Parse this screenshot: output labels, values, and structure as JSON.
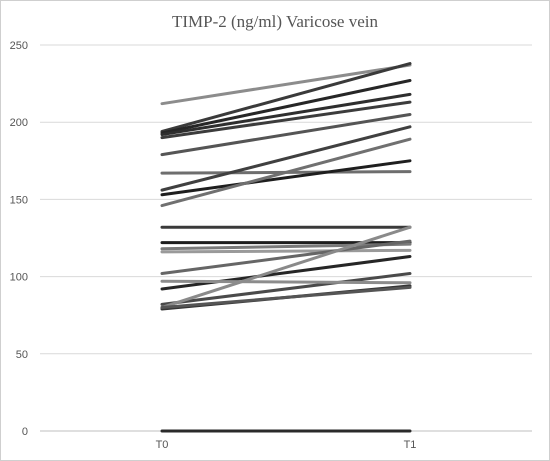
{
  "chart_data": {
    "type": "line",
    "title": "TIMP-2 (ng/ml) Varicose vein",
    "categories": [
      "T0",
      "T1"
    ],
    "ylim": [
      0,
      250
    ],
    "yticks": [
      0,
      50,
      100,
      150,
      200,
      250
    ],
    "grid": true,
    "legend": "none",
    "series": [
      {
        "values": [
          212,
          237
        ],
        "color": "#8c8c8c"
      },
      {
        "values": [
          194,
          238
        ],
        "color": "#3a3a3a"
      },
      {
        "values": [
          193,
          227
        ],
        "color": "#262626"
      },
      {
        "values": [
          192,
          218
        ],
        "color": "#2e2e2e"
      },
      {
        "values": [
          190,
          213
        ],
        "color": "#3c3c3c"
      },
      {
        "values": [
          179,
          205
        ],
        "color": "#555555"
      },
      {
        "values": [
          167,
          168
        ],
        "color": "#6e6e6e"
      },
      {
        "values": [
          156,
          197
        ],
        "color": "#404040"
      },
      {
        "values": [
          153,
          175
        ],
        "color": "#1e1e1e"
      },
      {
        "values": [
          146,
          189
        ],
        "color": "#707070"
      },
      {
        "values": [
          132,
          132
        ],
        "color": "#3a3a3a"
      },
      {
        "values": [
          122,
          122
        ],
        "color": "#1e1e1e"
      },
      {
        "values": [
          118,
          121
        ],
        "color": "#7a7a7a"
      },
      {
        "values": [
          116,
          117
        ],
        "color": "#9a9a9a"
      },
      {
        "values": [
          102,
          123
        ],
        "color": "#666666"
      },
      {
        "values": [
          92,
          113
        ],
        "color": "#262626"
      },
      {
        "values": [
          82,
          102
        ],
        "color": "#4a4a4a"
      },
      {
        "values": [
          80,
          132
        ],
        "color": "#8a8a8a"
      },
      {
        "values": [
          79,
          94
        ],
        "color": "#353535"
      },
      {
        "values": [
          80,
          93
        ],
        "color": "#555555"
      },
      {
        "values": [
          97,
          96
        ],
        "color": "#8c8c8c"
      },
      {
        "values": [
          0,
          0
        ],
        "color": "#2a2a2a"
      }
    ]
  }
}
